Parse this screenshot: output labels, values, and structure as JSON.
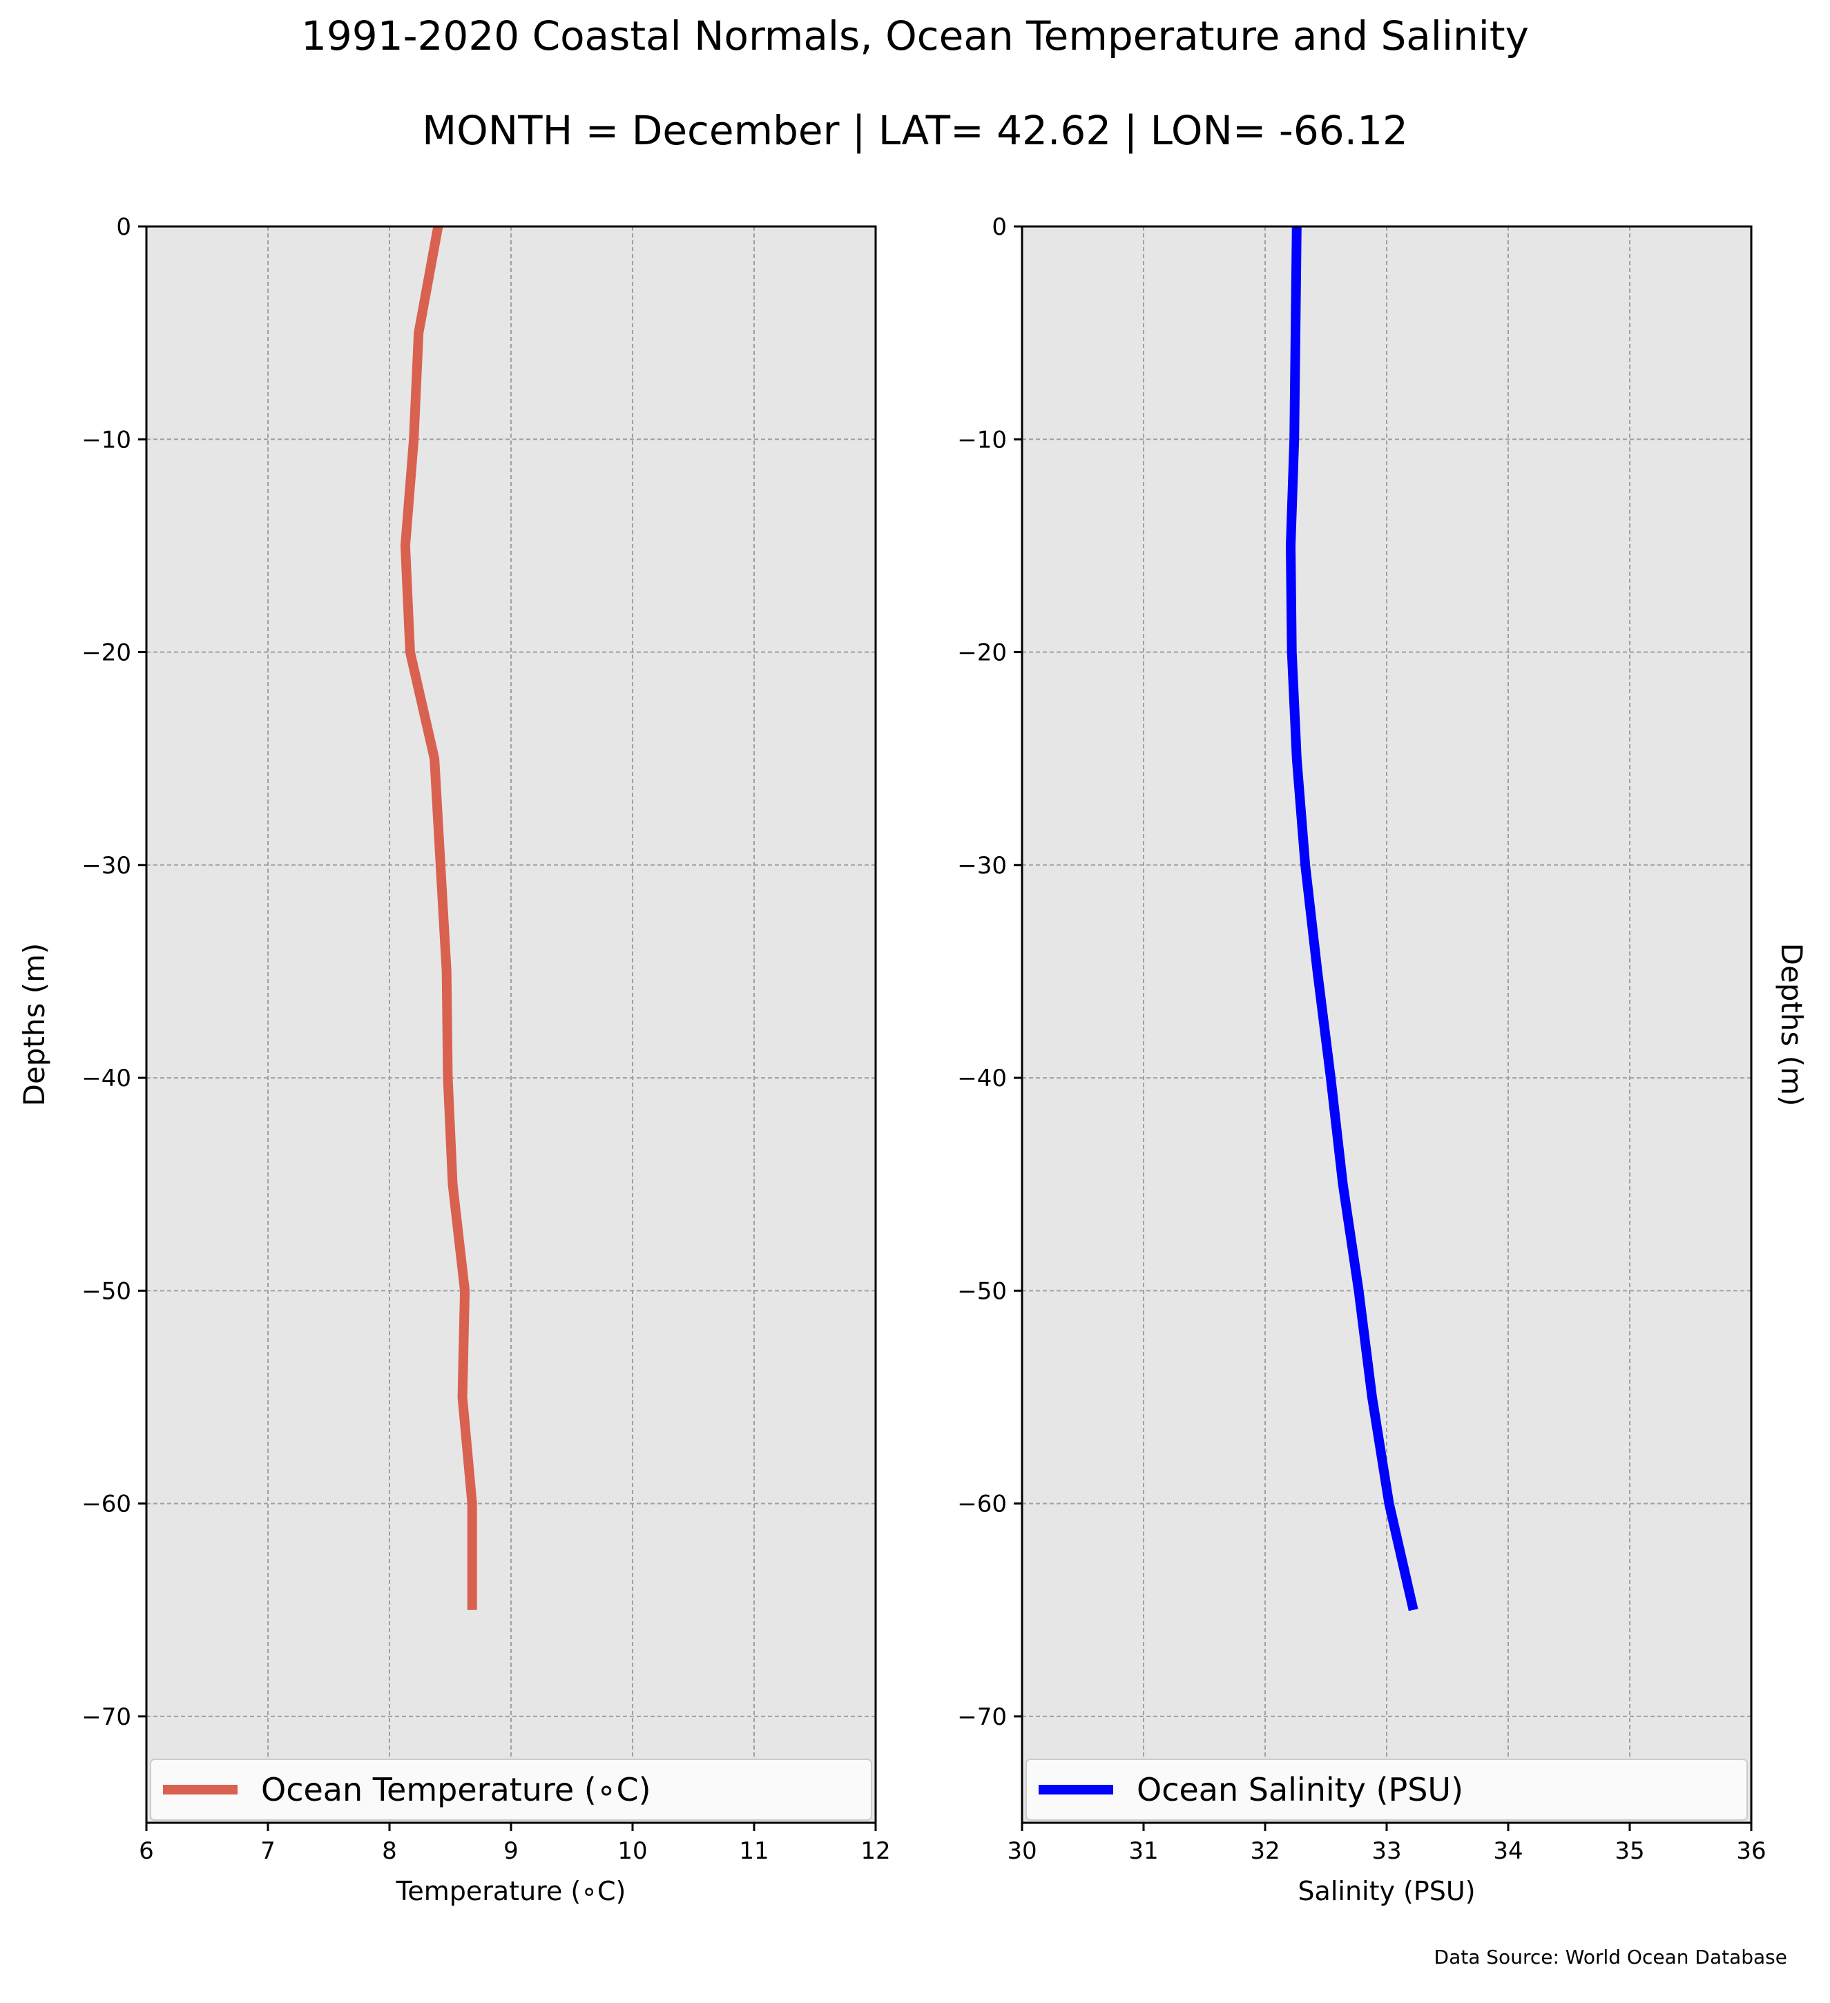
{
  "title": "1991-2020 Coastal Normals, Ocean Temperature and Salinity",
  "subtitle": "MONTH = December | LAT= 42.62 | LON= -66.12",
  "source": "Data Source: World Ocean Database",
  "chart_data": [
    {
      "type": "line",
      "xlabel": "Temperature (∘C)",
      "ylabel": "Depths (m)",
      "ylabel_side": "left",
      "xlim": [
        6,
        12
      ],
      "ylim": [
        -75,
        0
      ],
      "xticks": [
        6,
        7,
        8,
        9,
        10,
        11,
        12
      ],
      "yticks": [
        0,
        -10,
        -20,
        -30,
        -40,
        -50,
        -60,
        -70
      ],
      "grid": true,
      "legend_placement": "bottom",
      "series": [
        {
          "name": "Ocean Temperature (∘C)",
          "color": "#d9614f",
          "x": [
            8.4,
            8.24,
            8.2,
            8.13,
            8.17,
            8.37,
            8.42,
            8.47,
            8.48,
            8.52,
            8.62,
            8.6,
            8.68,
            8.68
          ],
          "y": [
            0,
            -5,
            -10,
            -15,
            -20,
            -25,
            -30,
            -35,
            -40,
            -45,
            -50,
            -55,
            -60,
            -65
          ]
        }
      ]
    },
    {
      "type": "line",
      "xlabel": "Salinity (PSU)",
      "ylabel": "Depths (m)",
      "ylabel_side": "right",
      "xlim": [
        30,
        36
      ],
      "ylim": [
        -75,
        0
      ],
      "xticks": [
        30,
        31,
        32,
        33,
        34,
        35,
        36
      ],
      "yticks": [
        0,
        -10,
        -20,
        -30,
        -40,
        -50,
        -60,
        -70
      ],
      "grid": true,
      "legend_placement": "bottom",
      "series": [
        {
          "name": "Ocean Salinity (PSU)",
          "color": "#0000ff",
          "x": [
            32.26,
            32.25,
            32.24,
            32.21,
            32.22,
            32.26,
            32.33,
            32.43,
            32.54,
            32.64,
            32.77,
            32.88,
            33.02,
            33.22
          ],
          "y": [
            0,
            -5,
            -10,
            -15,
            -20,
            -25,
            -30,
            -35,
            -40,
            -45,
            -50,
            -55,
            -60,
            -65
          ]
        }
      ]
    }
  ]
}
